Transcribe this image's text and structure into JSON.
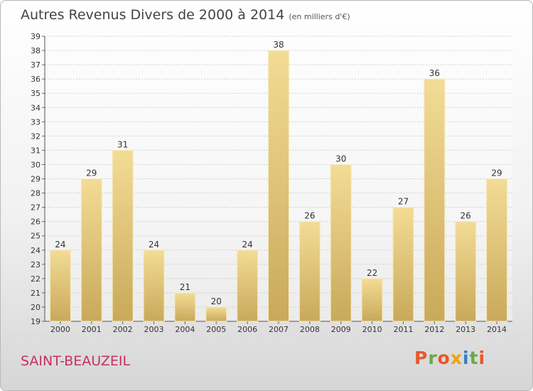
{
  "header": {
    "title": "Autres Revenus Divers de 2000 à 2014",
    "unit": "(en milliers d'€)"
  },
  "footer": {
    "commune": "SAINT-BEAUZEIL",
    "logo_letters": [
      "P",
      "r",
      "o",
      "x",
      "i",
      "t",
      "i"
    ]
  },
  "colors": {
    "bar_top": "#f3dc96",
    "bar_bottom": "#c9a95a",
    "commune": "#c4325f",
    "logo": [
      "#e8572a",
      "#6aa84f",
      "#e8572a",
      "#f1a20b",
      "#3a7ec2",
      "#6aa84f",
      "#e8572a"
    ]
  },
  "chart_data": {
    "type": "bar",
    "title": "Autres Revenus Divers de 2000 à 2014",
    "xlabel": "",
    "ylabel": "",
    "categories": [
      "2000",
      "2001",
      "2002",
      "2003",
      "2004",
      "2005",
      "2006",
      "2007",
      "2008",
      "2009",
      "2010",
      "2011",
      "2012",
      "2013",
      "2014"
    ],
    "values": [
      24,
      29,
      31,
      24,
      21,
      20,
      24,
      38,
      26,
      30,
      22,
      27,
      36,
      26,
      29
    ],
    "ylim": [
      19,
      39
    ],
    "yticks": [
      19,
      20,
      21,
      22,
      23,
      24,
      25,
      26,
      27,
      28,
      29,
      30,
      31,
      32,
      33,
      34,
      35,
      36,
      37,
      38,
      39
    ],
    "grid": true,
    "data_labels": true
  }
}
